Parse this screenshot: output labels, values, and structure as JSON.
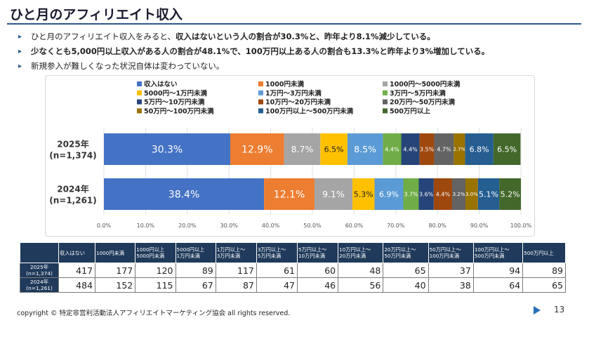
{
  "header": {
    "title": "ひと月のアフィリエイト収入"
  },
  "bullets": [
    "ひと月のアフィリエイト収入をみると、収入はないという人の割合が30.3%と、昨年より8.1%減少している。",
    "少なくとも5,000円以上収入がある人の割合が48.1%で、100万円以上ある人の割合も13.3%と昨年より3%増加している。",
    "新規参入が難しくなった状況自体は変わっていない。"
  ],
  "chart_data": {
    "type": "bar",
    "orientation": "horizontal",
    "stacked": "percent",
    "categories": [
      "2025年\n(n=1,374)",
      "2024年\n(n=1,261)"
    ],
    "series": [
      {
        "name": "収入はない",
        "color": "#4472C4",
        "values": [
          30.3,
          38.4
        ]
      },
      {
        "name": "1000円未満",
        "color": "#ED7D31",
        "values": [
          12.9,
          12.1
        ]
      },
      {
        "name": "1000円～5000円未満",
        "color": "#A5A5A5",
        "values": [
          8.7,
          9.1
        ]
      },
      {
        "name": "5000円～1万円未満",
        "color": "#FFC000",
        "values": [
          6.5,
          5.3
        ]
      },
      {
        "name": "1万円～3万円未満",
        "color": "#5B9BD5",
        "values": [
          8.5,
          6.9
        ]
      },
      {
        "name": "3万円～5万円未満",
        "color": "#70AD47",
        "values": [
          4.4,
          3.7
        ]
      },
      {
        "name": "5万円～10万円未満",
        "color": "#264478",
        "values": [
          4.4,
          3.6
        ]
      },
      {
        "name": "10万円～20万円未満",
        "color": "#9E480E",
        "values": [
          3.5,
          4.4
        ]
      },
      {
        "name": "20万円～50万円未満",
        "color": "#636363",
        "values": [
          4.7,
          3.2
        ]
      },
      {
        "name": "50万円～100万円未満",
        "color": "#997300",
        "values": [
          2.7,
          3.0
        ]
      },
      {
        "name": "100万円以上～500万円未満",
        "color": "#255E91",
        "values": [
          6.8,
          5.1
        ]
      },
      {
        "name": "500万円以上",
        "color": "#43682B",
        "values": [
          6.5,
          5.2
        ]
      }
    ],
    "xlim": [
      0,
      100
    ],
    "xticks": [
      "0.0%",
      "10.0%",
      "20.0%",
      "30.0%",
      "40.0%",
      "50.0%",
      "60.0%",
      "70.0%",
      "80.0%",
      "90.0%",
      "100.0%"
    ],
    "legend_position": "top",
    "grid": true
  },
  "table": {
    "headers": [
      "収入はない",
      "1000円未満",
      "1000円以上\n5000円未満",
      "5000円以上\n1万円未満",
      "1万円以上～\n3万円未満",
      "3万円以上～\n5万円未満",
      "5万円以上～\n10万円未満",
      "10万円以上～\n20万円未満",
      "20万円以上～\n50万円未満",
      "50万円以上～\n100万円未満",
      "100万円以上～\n500万円未満",
      "500万円以上"
    ],
    "rows": [
      {
        "label": "2025年\n(n=1,374)",
        "values": [
          417,
          177,
          120,
          89,
          117,
          61,
          60,
          48,
          65,
          37,
          94,
          89
        ]
      },
      {
        "label": "2024年\n(n=1,261)",
        "values": [
          484,
          152,
          115,
          67,
          87,
          47,
          46,
          56,
          40,
          38,
          64,
          65
        ]
      }
    ]
  },
  "footer": {
    "copyright": "copyright © 特定非営利活動法人アフィリエイトマーケティング協会 all rights reserved.",
    "page": "13"
  }
}
